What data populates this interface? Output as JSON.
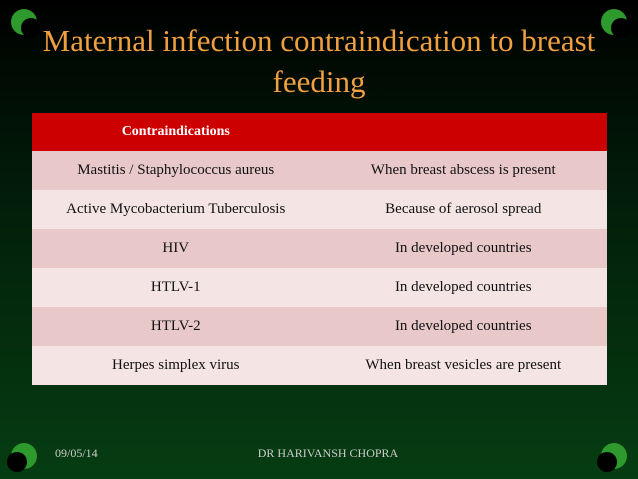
{
  "header": {
    "title": "Maternal infection contraindication to breast feeding"
  },
  "table": {
    "header": [
      "Contraindications"
    ],
    "rows": [
      [
        "Mastitis / Staphylococcus aureus",
        "When breast abscess is present"
      ],
      [
        "Active Mycobacterium Tuberculosis",
        "Because of aerosol spread"
      ],
      [
        "HIV",
        "In developed countries"
      ],
      [
        "HTLV-1",
        "In developed countries"
      ],
      [
        "HTLV-2",
        "In developed countries"
      ],
      [
        "Herpes simplex virus",
        "When breast vesicles are present"
      ]
    ]
  },
  "footer": {
    "date": "09/05/14",
    "author": "DR HARIVANSH CHOPRA"
  }
}
